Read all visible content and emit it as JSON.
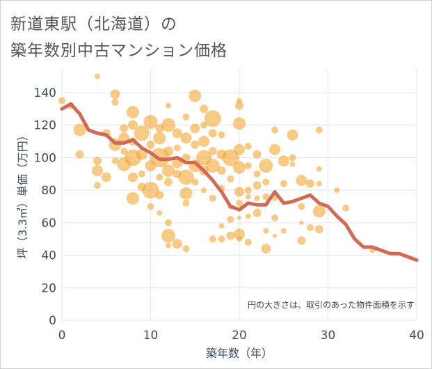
{
  "header": {
    "title_line1": "新道東駅（北海道）の",
    "title_line2": "築年数別中古マンション価格"
  },
  "colors": {
    "bubble": "#f2a93b",
    "line": "#d06a55",
    "grid": "#dfe6ee",
    "axis_text": "#3c4d5c"
  },
  "chart_data": {
    "type": "scatter",
    "xlabel": "築年数（年）",
    "ylabel": "坪（3.3㎡）単価（万円）",
    "xlim": [
      0,
      40
    ],
    "ylim": [
      0,
      155
    ],
    "xticks": [
      0,
      10,
      20,
      30,
      40
    ],
    "yticks": [
      0,
      20,
      40,
      60,
      80,
      100,
      120,
      140
    ],
    "grid": true,
    "note": "円の大きさは、取引のあった物件面積を示す",
    "bubbles": [
      [
        0,
        135,
        5
      ],
      [
        1,
        132,
        5
      ],
      [
        2,
        117,
        9
      ],
      [
        2,
        102,
        6
      ],
      [
        4,
        150,
        4
      ],
      [
        4,
        98,
        6
      ],
      [
        4,
        92,
        8
      ],
      [
        4,
        83,
        5
      ],
      [
        5,
        88,
        7
      ],
      [
        5,
        115,
        6
      ],
      [
        6,
        108,
        9
      ],
      [
        6,
        98,
        5
      ],
      [
        6,
        139,
        7
      ],
      [
        6,
        134,
        5
      ],
      [
        7,
        118,
        6
      ],
      [
        7,
        112,
        8
      ],
      [
        7,
        96,
        10
      ],
      [
        7,
        104,
        5
      ],
      [
        8,
        128,
        9
      ],
      [
        8,
        120,
        7
      ],
      [
        8,
        110,
        6
      ],
      [
        8,
        100,
        12
      ],
      [
        8,
        88,
        7
      ],
      [
        8,
        75,
        9
      ],
      [
        9,
        115,
        11
      ],
      [
        9,
        102,
        8
      ],
      [
        9,
        90,
        5
      ],
      [
        9,
        82,
        6
      ],
      [
        10,
        122,
        10
      ],
      [
        10,
        108,
        6
      ],
      [
        10,
        95,
        8
      ],
      [
        10,
        80,
        12
      ],
      [
        10,
        70,
        5
      ],
      [
        11,
        118,
        6
      ],
      [
        11,
        112,
        9
      ],
      [
        11,
        100,
        14
      ],
      [
        11,
        88,
        5
      ],
      [
        11,
        77,
        6
      ],
      [
        11,
        66,
        4
      ],
      [
        12,
        132,
        4
      ],
      [
        12,
        120,
        10
      ],
      [
        12,
        104,
        7
      ],
      [
        12,
        92,
        9
      ],
      [
        12,
        85,
        6
      ],
      [
        12,
        60,
        5
      ],
      [
        12,
        52,
        10
      ],
      [
        12,
        46,
        4
      ],
      [
        13,
        115,
        7
      ],
      [
        13,
        106,
        5
      ],
      [
        13,
        97,
        8
      ],
      [
        13,
        90,
        6
      ],
      [
        13,
        47,
        7
      ],
      [
        14,
        125,
        5
      ],
      [
        14,
        112,
        8
      ],
      [
        14,
        100,
        6
      ],
      [
        14,
        88,
        11
      ],
      [
        14,
        78,
        9
      ],
      [
        14,
        72,
        5
      ],
      [
        14,
        44,
        5
      ],
      [
        15,
        138,
        9
      ],
      [
        15,
        118,
        7
      ],
      [
        15,
        108,
        6
      ],
      [
        15,
        95,
        9
      ],
      [
        15,
        85,
        5
      ],
      [
        16,
        130,
        6
      ],
      [
        16,
        120,
        5
      ],
      [
        16,
        110,
        8
      ],
      [
        16,
        100,
        11
      ],
      [
        16,
        92,
        7
      ],
      [
        16,
        80,
        4
      ],
      [
        17,
        124,
        12
      ],
      [
        17,
        115,
        6
      ],
      [
        17,
        104,
        6
      ],
      [
        17,
        95,
        10
      ],
      [
        17,
        75,
        5
      ],
      [
        17,
        50,
        5
      ],
      [
        18,
        114,
        5
      ],
      [
        18,
        102,
        7
      ],
      [
        18,
        92,
        6
      ],
      [
        18,
        81,
        5
      ],
      [
        18,
        58,
        4
      ],
      [
        18,
        50,
        5
      ],
      [
        19,
        100,
        12
      ],
      [
        19,
        87,
        5
      ],
      [
        19,
        70,
        4
      ],
      [
        19,
        62,
        5
      ],
      [
        19,
        52,
        6
      ],
      [
        20,
        135,
        4
      ],
      [
        20,
        132,
        6
      ],
      [
        20,
        121,
        9
      ],
      [
        20,
        105,
        8
      ],
      [
        20,
        94,
        9
      ],
      [
        20,
        79,
        7
      ],
      [
        20,
        72,
        5
      ],
      [
        20,
        63,
        3
      ],
      [
        20,
        53,
        8
      ],
      [
        20,
        50,
        4
      ],
      [
        21,
        107,
        5
      ],
      [
        21,
        95,
        5
      ],
      [
        21,
        80,
        5
      ],
      [
        21,
        76,
        4
      ],
      [
        21,
        64,
        4
      ],
      [
        21,
        48,
        5
      ],
      [
        22,
        102,
        6
      ],
      [
        22,
        90,
        5
      ],
      [
        22,
        83,
        6
      ],
      [
        22,
        75,
        4
      ],
      [
        22,
        66,
        6
      ],
      [
        23,
        95,
        10
      ],
      [
        23,
        85,
        5
      ],
      [
        23,
        76,
        5
      ],
      [
        23,
        55,
        4
      ],
      [
        23,
        44,
        7
      ],
      [
        24,
        105,
        8
      ],
      [
        24,
        117,
        5
      ],
      [
        24,
        75,
        4
      ],
      [
        24,
        63,
        5
      ],
      [
        24,
        52,
        3
      ],
      [
        25,
        98,
        8
      ],
      [
        25,
        84,
        5
      ],
      [
        25,
        55,
        4
      ],
      [
        26,
        114,
        8
      ],
      [
        26,
        100,
        5
      ],
      [
        26,
        96,
        4
      ],
      [
        27,
        86,
        8
      ],
      [
        27,
        70,
        5
      ],
      [
        27,
        60,
        3
      ],
      [
        27,
        49,
        6
      ],
      [
        28,
        84,
        6
      ],
      [
        28,
        57,
        5
      ],
      [
        29,
        117,
        5
      ],
      [
        29,
        93,
        4
      ],
      [
        29,
        84,
        4
      ],
      [
        29,
        67,
        9
      ],
      [
        29,
        56,
        6
      ],
      [
        31,
        80,
        4
      ],
      [
        32,
        69,
        5
      ],
      [
        35,
        43,
        4
      ]
    ],
    "avg_line": {
      "x": [
        0,
        1,
        2,
        3,
        4,
        5,
        6,
        7,
        8,
        9,
        10,
        11,
        12,
        13,
        14,
        15,
        16,
        17,
        18,
        19,
        20,
        21,
        22,
        23,
        24,
        25,
        26,
        27,
        28,
        29,
        30,
        31,
        32,
        33,
        34,
        35,
        36,
        37,
        38,
        39,
        40
      ],
      "y": [
        130,
        133,
        127,
        117,
        115,
        114,
        109,
        109,
        111,
        106,
        103,
        99,
        99,
        100,
        97,
        97,
        92,
        86,
        79,
        70,
        68,
        72,
        71,
        71,
        79,
        72,
        73,
        75,
        77,
        72,
        70,
        64,
        59,
        50,
        45,
        45,
        43,
        41,
        41,
        39,
        37
      ]
    }
  }
}
